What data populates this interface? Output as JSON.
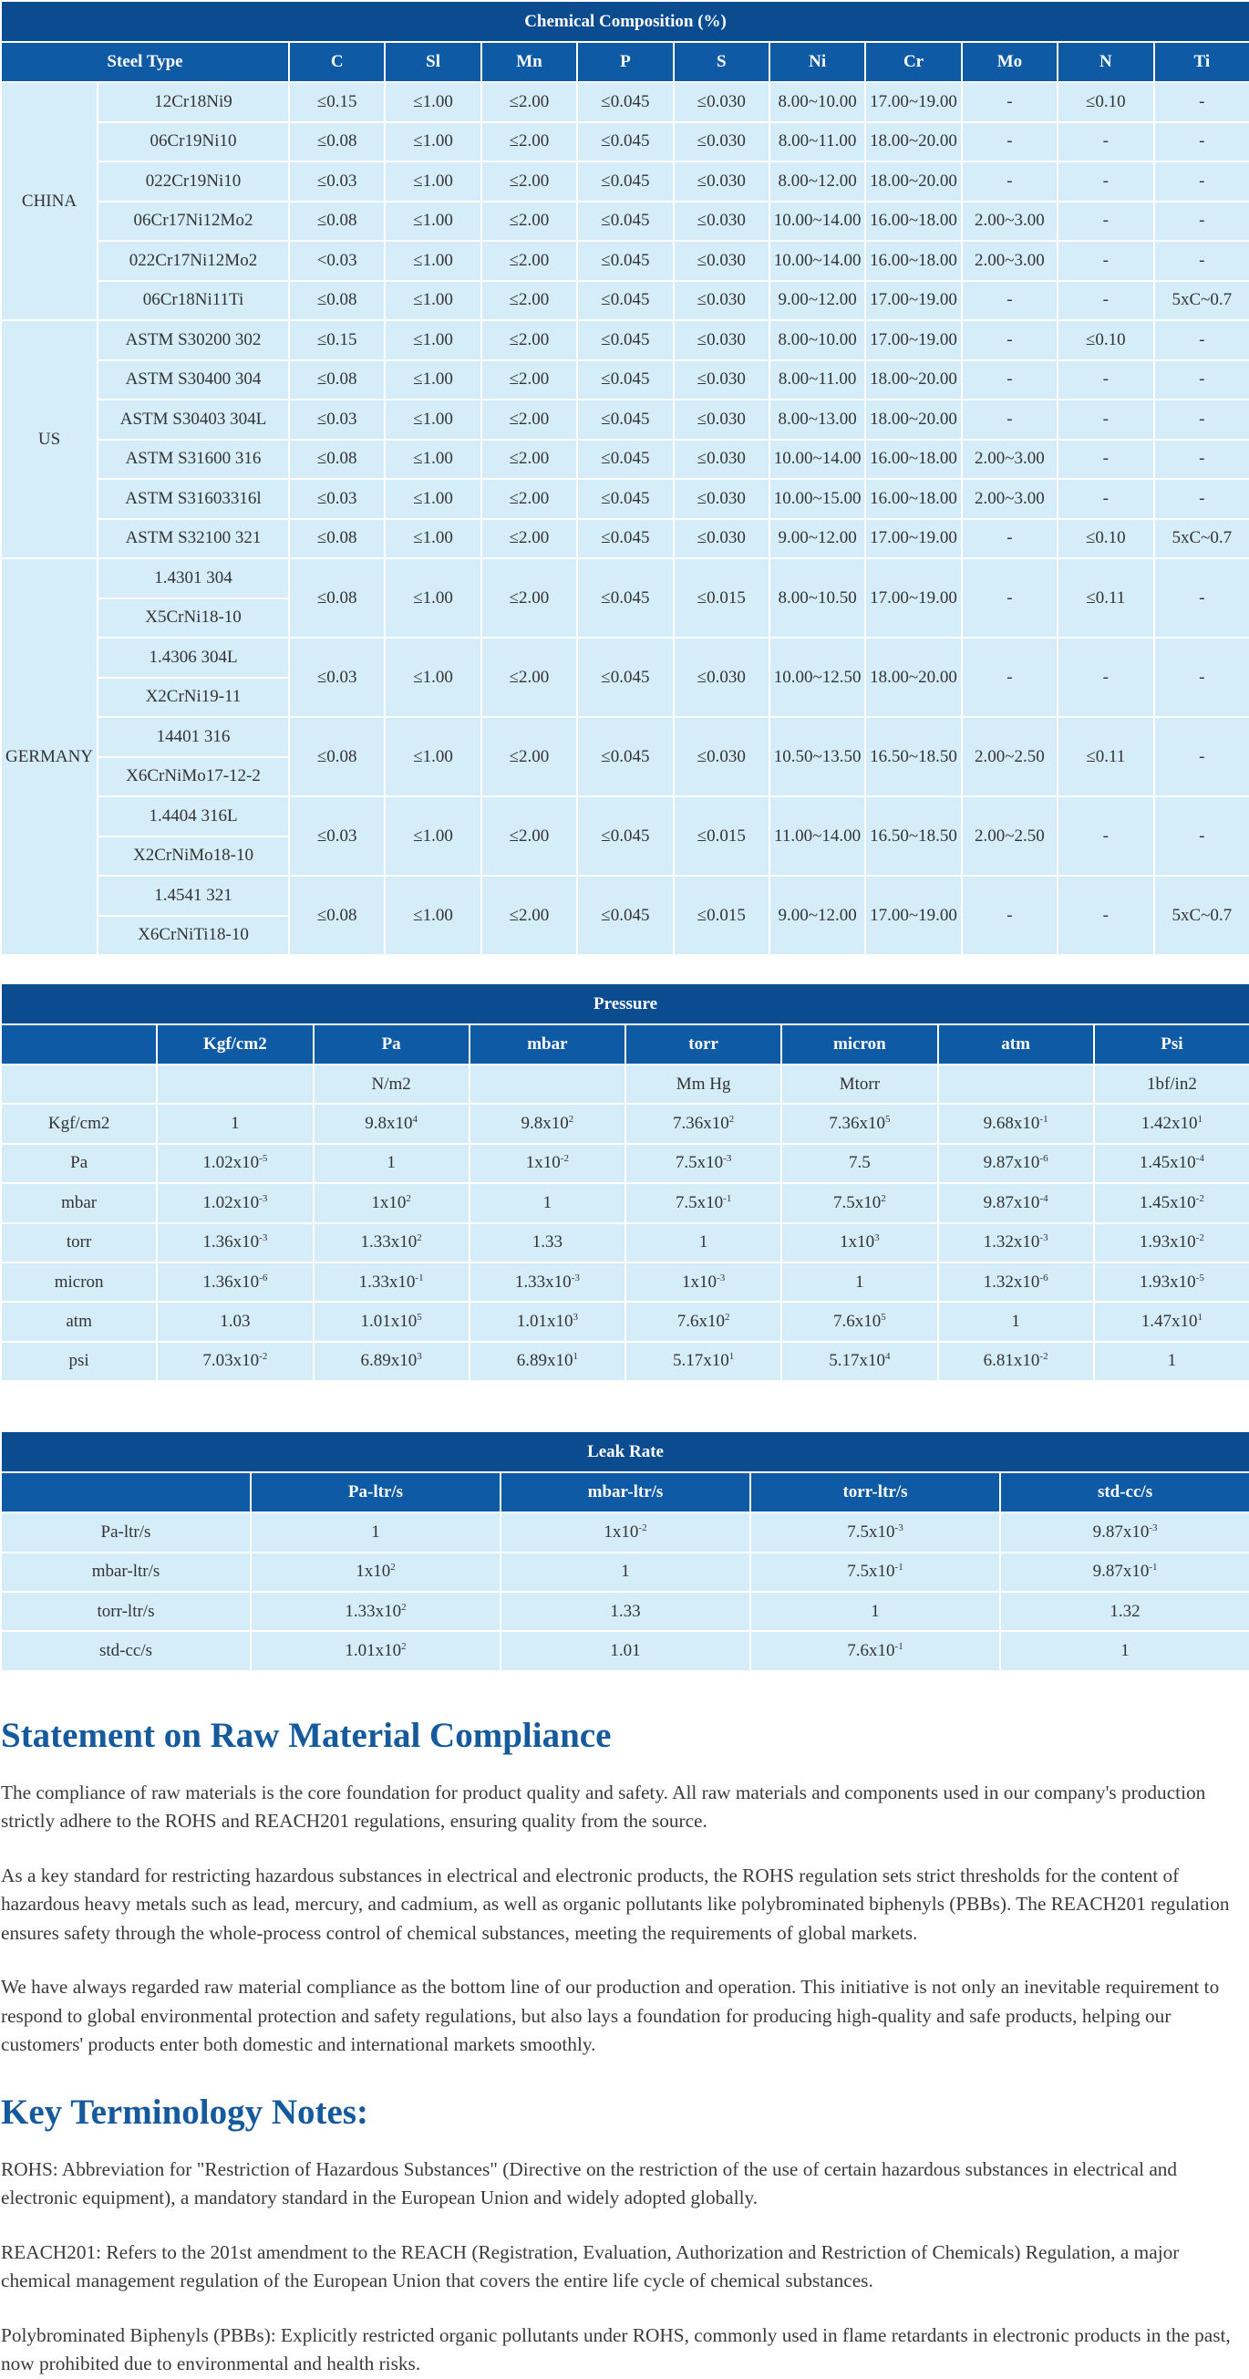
{
  "chemical_table": {
    "title": "Chemical Composition (%)",
    "columns": [
      "Steel Type",
      "C",
      "Sl",
      "Mn",
      "P",
      "S",
      "Ni",
      "Cr",
      "Mo",
      "N",
      "Ti"
    ],
    "groups": [
      {
        "country": "CHINA",
        "grades": [
          {
            "names": [
              "12Cr18Ni9"
            ],
            "values": [
              "≤0.15",
              "≤1.00",
              "≤2.00",
              "≤0.045",
              "≤0.030",
              "8.00~10.00",
              "17.00~19.00",
              "-",
              "≤0.10",
              "-"
            ]
          },
          {
            "names": [
              "06Cr19Ni10"
            ],
            "values": [
              "≤0.08",
              "≤1.00",
              "≤2.00",
              "≤0.045",
              "≤0.030",
              "8.00~11.00",
              "18.00~20.00",
              "-",
              "-",
              "-"
            ]
          },
          {
            "names": [
              "022Cr19Ni10"
            ],
            "values": [
              "≤0.03",
              "≤1.00",
              "≤2.00",
              "≤0.045",
              "≤0.030",
              "8.00~12.00",
              "18.00~20.00",
              "-",
              "-",
              "-"
            ]
          },
          {
            "names": [
              "06Cr17Ni12Mo2"
            ],
            "values": [
              "≤0.08",
              "≤1.00",
              "≤2.00",
              "≤0.045",
              "≤0.030",
              "10.00~14.00",
              "16.00~18.00",
              "2.00~3.00",
              "-",
              "-"
            ]
          },
          {
            "names": [
              "022Cr17Ni12Mo2"
            ],
            "values": [
              "<0.03",
              "≤1.00",
              "≤2.00",
              "≤0.045",
              "≤0.030",
              "10.00~14.00",
              "16.00~18.00",
              "2.00~3.00",
              "-",
              "-"
            ]
          },
          {
            "names": [
              "06Cr18Ni11Ti"
            ],
            "values": [
              "≤0.08",
              "≤1.00",
              "≤2.00",
              "≤0.045",
              "≤0.030",
              "9.00~12.00",
              "17.00~19.00",
              "-",
              "-",
              "5xC~0.7"
            ]
          }
        ]
      },
      {
        "country": "US",
        "grades": [
          {
            "names": [
              "ASTM S30200 302"
            ],
            "values": [
              "≤0.15",
              "≤1.00",
              "≤2.00",
              "≤0.045",
              "≤0.030",
              "8.00~10.00",
              "17.00~19.00",
              "-",
              "≤0.10",
              "-"
            ]
          },
          {
            "names": [
              "ASTM S30400 304"
            ],
            "values": [
              "≤0.08",
              "≤1.00",
              "≤2.00",
              "≤0.045",
              "≤0.030",
              "8.00~11.00",
              "18.00~20.00",
              "-",
              "-",
              "-"
            ]
          },
          {
            "names": [
              "ASTM S30403 304L"
            ],
            "values": [
              "≤0.03",
              "≤1.00",
              "≤2.00",
              "≤0.045",
              "≤0.030",
              "8.00~13.00",
              "18.00~20.00",
              "-",
              "-",
              "-"
            ]
          },
          {
            "names": [
              "ASTM S31600 316"
            ],
            "values": [
              "≤0.08",
              "≤1.00",
              "≤2.00",
              "≤0.045",
              "≤0.030",
              "10.00~14.00",
              "16.00~18.00",
              "2.00~3.00",
              "-",
              "-"
            ]
          },
          {
            "names": [
              "ASTM S31603316l"
            ],
            "values": [
              "≤0.03",
              "≤1.00",
              "≤2.00",
              "≤0.045",
              "≤0.030",
              "10.00~15.00",
              "16.00~18.00",
              "2.00~3.00",
              "-",
              "-"
            ]
          },
          {
            "names": [
              "ASTM S32100 321"
            ],
            "values": [
              "≤0.08",
              "≤1.00",
              "≤2.00",
              "≤0.045",
              "≤0.030",
              "9.00~12.00",
              "17.00~19.00",
              "-",
              "≤0.10",
              "5xC~0.7"
            ]
          }
        ]
      },
      {
        "country": "GERMANY",
        "grades": [
          {
            "names": [
              "1.4301 304",
              "X5CrNi18-10"
            ],
            "values": [
              "≤0.08",
              "≤1.00",
              "≤2.00",
              "≤0.045",
              "≤0.015",
              "8.00~10.50",
              "17.00~19.00",
              "-",
              "≤0.11",
              "-"
            ]
          },
          {
            "names": [
              "1.4306 304L",
              "X2CrNi19-11"
            ],
            "values": [
              "≤0.03",
              "≤1.00",
              "≤2.00",
              "≤0.045",
              "≤0.030",
              "10.00~12.50",
              "18.00~20.00",
              "-",
              "-",
              "-"
            ]
          },
          {
            "names": [
              "14401 316",
              "X6CrNiMo17-12-2"
            ],
            "values": [
              "≤0.08",
              "≤1.00",
              "≤2.00",
              "≤0.045",
              "≤0.030",
              "10.50~13.50",
              "16.50~18.50",
              "2.00~2.50",
              "≤0.11",
              "-"
            ]
          },
          {
            "names": [
              "1.4404 316L",
              "X2CrNiMo18-10"
            ],
            "values": [
              "≤0.03",
              "≤1.00",
              "≤2.00",
              "≤0.045",
              "≤0.015",
              "11.00~14.00",
              "16.50~18.50",
              "2.00~2.50",
              "-",
              "-"
            ]
          },
          {
            "names": [
              "1.4541 321",
              "X6CrNiTi18-10"
            ],
            "values": [
              "≤0.08",
              "≤1.00",
              "≤2.00",
              "≤0.045",
              "≤0.015",
              "9.00~12.00",
              "17.00~19.00",
              "-",
              "-",
              "5xC~0.7"
            ]
          }
        ]
      }
    ]
  },
  "pressure_table": {
    "title": "Pressure",
    "columns": [
      "Kgf/cm2",
      "Pa",
      "mbar",
      "torr",
      "micron",
      "atm",
      "Psi"
    ],
    "units": [
      null,
      "N/m2",
      null,
      "Mm Hg",
      "Mtorr",
      null,
      "1bf/in2"
    ],
    "rows": [
      {
        "label": "Kgf/cm2",
        "values": [
          "1",
          {
            "base": "9.8x10",
            "exponent": "4"
          },
          {
            "base": "9.8x10",
            "exponent": "2"
          },
          {
            "base": "7.36x10",
            "exponent": "2"
          },
          {
            "base": "7.36x10",
            "exponent": "5"
          },
          {
            "base": "9.68x10",
            "exponent": "-1"
          },
          {
            "base": "1.42x10",
            "exponent": "1"
          }
        ]
      },
      {
        "label": "Pa",
        "values": [
          {
            "base": "1.02x10",
            "exponent": "-5"
          },
          "1",
          {
            "base": "1x10",
            "exponent": "-2"
          },
          {
            "base": "7.5x10",
            "exponent": "-3"
          },
          "7.5",
          {
            "base": "9.87x10",
            "exponent": "-6"
          },
          {
            "base": "1.45x10",
            "exponent": "-4"
          }
        ]
      },
      {
        "label": "mbar",
        "values": [
          {
            "base": "1.02x10",
            "exponent": "-3"
          },
          {
            "base": "1x10",
            "exponent": "2"
          },
          "1",
          {
            "base": "7.5x10",
            "exponent": "-1"
          },
          {
            "base": "7.5x10",
            "exponent": "2"
          },
          {
            "base": "9.87x10",
            "exponent": "-4"
          },
          {
            "base": "1.45x10",
            "exponent": "-2"
          }
        ]
      },
      {
        "label": "torr",
        "values": [
          {
            "base": "1.36x10",
            "exponent": "-3"
          },
          {
            "base": "1.33x10",
            "exponent": "2"
          },
          "1.33",
          "1",
          {
            "base": "1x10",
            "exponent": "3"
          },
          {
            "base": "1.32x10",
            "exponent": "-3"
          },
          {
            "base": "1.93x10",
            "exponent": "-2"
          }
        ]
      },
      {
        "label": "micron",
        "values": [
          {
            "base": "1.36x10",
            "exponent": "-6"
          },
          {
            "base": "1.33x10",
            "exponent": "-1"
          },
          {
            "base": "1.33x10",
            "exponent": "-3"
          },
          {
            "base": "1x10",
            "exponent": "-3"
          },
          "1",
          {
            "base": "1.32x10",
            "exponent": "-6"
          },
          {
            "base": "1.93x10",
            "exponent": "-5"
          }
        ]
      },
      {
        "label": "atm",
        "values": [
          "1.03",
          {
            "base": "1.01x10",
            "exponent": "5"
          },
          {
            "base": "1.01x10",
            "exponent": "3"
          },
          {
            "base": "7.6x10",
            "exponent": "2"
          },
          {
            "base": "7.6x10",
            "exponent": "5"
          },
          "1",
          {
            "base": "1.47x10",
            "exponent": "1"
          }
        ]
      },
      {
        "label": "psi",
        "values": [
          {
            "base": "7.03x10",
            "exponent": "-2"
          },
          {
            "base": "6.89x10",
            "exponent": "3"
          },
          {
            "base": "6.89x10",
            "exponent": "1"
          },
          {
            "base": "5.17x10",
            "exponent": "1"
          },
          {
            "base": "5.17x10",
            "exponent": "4"
          },
          {
            "base": "6.81x10",
            "exponent": "-2"
          },
          "1"
        ]
      }
    ]
  },
  "leak_table": {
    "title": "Leak Rate",
    "columns": [
      "Pa-ltr/s",
      "mbar-ltr/s",
      "torr-ltr/s",
      "std-cc/s"
    ],
    "rows": [
      {
        "label": "Pa-ltr/s",
        "values": [
          "1",
          {
            "base": "1x10",
            "exponent": "-2"
          },
          {
            "base": "7.5x10",
            "exponent": "-3"
          },
          {
            "base": "9.87x10",
            "exponent": "-3"
          }
        ]
      },
      {
        "label": "mbar-ltr/s",
        "values": [
          {
            "base": "1x10",
            "exponent": "2"
          },
          "1",
          {
            "base": "7.5x10",
            "exponent": "-1"
          },
          {
            "base": "9.87x10",
            "exponent": "-1"
          }
        ]
      },
      {
        "label": "torr-ltr/s",
        "values": [
          {
            "base": "1.33x10",
            "exponent": "2"
          },
          "1.33",
          "1",
          "1.32"
        ]
      },
      {
        "label": "std-cc/s",
        "values": [
          {
            "base": "1.01x10",
            "exponent": "2"
          },
          "1.01",
          {
            "base": "7.6x10",
            "exponent": "-1"
          },
          "1"
        ]
      }
    ]
  },
  "statement": {
    "title": "Statement on Raw Material Compliance",
    "paragraphs": [
      "The compliance of raw materials is the core foundation for product quality and safety. All raw materials and components used in our company's production strictly adhere to the ROHS and REACH201 regulations, ensuring quality from the source.",
      "As a key standard for restricting hazardous substances in electrical and electronic products, the ROHS regulation sets strict thresholds for the content of hazardous heavy metals such as lead, mercury, and cadmium, as well as organic pollutants like polybrominated biphenyls (PBBs). The REACH201 regulation ensures safety through the whole-process control of chemical substances, meeting the requirements of global markets.",
      "We have always regarded raw material compliance as the bottom line of our production and operation. This initiative is not only an inevitable requirement to respond to global environmental protection and safety regulations, but also lays a foundation for producing high-quality and safe products, helping our customers' products enter both domestic and international markets smoothly."
    ]
  },
  "terminology": {
    "title": "Key Terminology Notes:",
    "notes": [
      "ROHS: Abbreviation for \"Restriction of Hazardous Substances\" (Directive on the restriction of the use of certain hazardous substances in electrical and electronic equipment), a mandatory standard in the European Union and widely adopted globally.",
      "REACH201: Refers to the 201st amendment to the REACH (Registration, Evaluation, Authorization and Restriction of Chemicals) Regulation, a major chemical management regulation of the European Union that covers the entire life cycle of chemical substances.",
      "Polybrominated Biphenyls (PBBs): Explicitly restricted organic pollutants under ROHS, commonly used in flame retardants in electronic products in the past, now prohibited due to environmental and health risks."
    ]
  }
}
